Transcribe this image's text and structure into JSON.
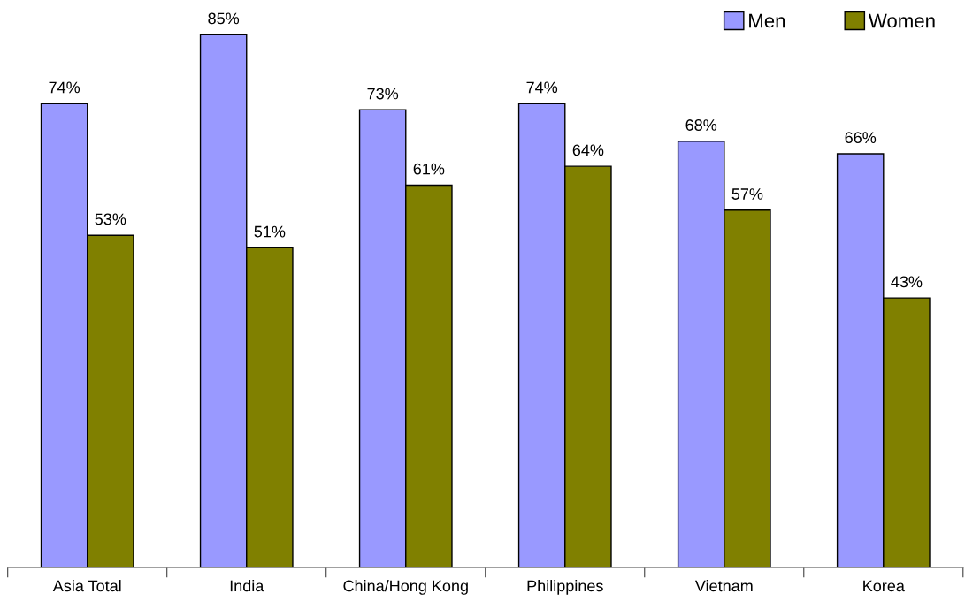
{
  "chart_data": {
    "type": "bar",
    "categories": [
      "Asia Total",
      "India",
      "China/Hong Kong",
      "Philippines",
      "Vietnam",
      "Korea"
    ],
    "series": [
      {
        "name": "Men",
        "color": "#9999ff",
        "values": [
          74,
          85,
          73,
          74,
          68,
          66
        ],
        "value_labels": [
          "74%",
          "85%",
          "73%",
          "74%",
          "68%",
          "66%"
        ]
      },
      {
        "name": "Women",
        "color": "#808000",
        "values": [
          53,
          51,
          61,
          64,
          57,
          43
        ],
        "value_labels": [
          "53%",
          "51%",
          "61%",
          "64%",
          "57%",
          "43%"
        ]
      }
    ],
    "legend": "top right",
    "tick_labels": "x"
  }
}
